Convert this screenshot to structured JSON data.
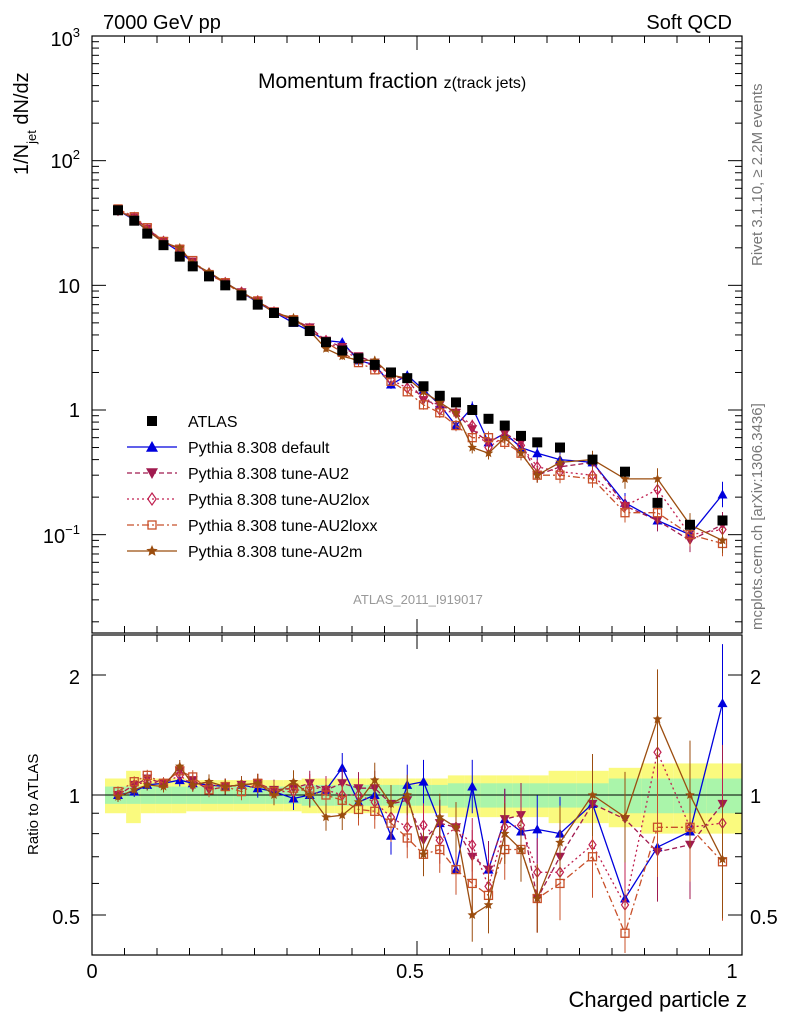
{
  "header": {
    "left": "7000 GeV pp",
    "right": "Soft QCD"
  },
  "side_labels": {
    "rivet": "Rivet 3.1.10, ≥ 2.2M events",
    "mcplots": "mcplots.cern.ch [arXiv:1306.3436]"
  },
  "chart_data": [
    {
      "type": "scatter",
      "title_main": "Momentum fraction ",
      "title_sub": "z(track jets)",
      "ylabel": "1/N_jet dN/dz",
      "yscale": "log",
      "ylim": [
        0.02,
        1000
      ],
      "xlim": [
        0,
        1
      ],
      "watermark": "ATLAS_2011_I919017",
      "ytick_labels": [
        "10^-1",
        "1",
        "10",
        "10^2",
        "10^3"
      ],
      "x": [
        0.04,
        0.065,
        0.085,
        0.11,
        0.135,
        0.155,
        0.18,
        0.205,
        0.23,
        0.255,
        0.28,
        0.31,
        0.335,
        0.36,
        0.385,
        0.41,
        0.435,
        0.46,
        0.485,
        0.51,
        0.535,
        0.56,
        0.585,
        0.61,
        0.635,
        0.66,
        0.685,
        0.72,
        0.77,
        0.82,
        0.87,
        0.92,
        0.97
      ],
      "series": [
        {
          "name": "ATLAS",
          "marker": "square",
          "color": "#000000",
          "dash": "none",
          "values": [
            40,
            33,
            26,
            21,
            17,
            14.2,
            11.8,
            10,
            8.3,
            7,
            6,
            5.1,
            4.3,
            3.5,
            3.0,
            2.6,
            2.3,
            2.0,
            1.8,
            1.55,
            1.3,
            1.15,
            1.0,
            0.85,
            0.75,
            0.62,
            0.55,
            0.5,
            0.4,
            0.32,
            0.18,
            0.12,
            0.13
          ]
        },
        {
          "name": "Pythia 8.308 default",
          "marker": "triangle-up",
          "color": "#0000dd",
          "dash": "none",
          "values": [
            40,
            33.5,
            27.5,
            22.5,
            18.5,
            15.2,
            12.5,
            10.5,
            8.8,
            7.3,
            6.1,
            5.0,
            4.3,
            3.6,
            3.5,
            2.5,
            2.3,
            1.6,
            1.9,
            1.45,
            1.1,
            0.75,
            1.05,
            0.55,
            0.65,
            0.5,
            0.45,
            0.4,
            0.38,
            0.18,
            0.13,
            0.1,
            0.21
          ]
        },
        {
          "name": "Pythia 8.308 tune-AU2",
          "marker": "triangle-down",
          "color": "#a01a4f",
          "dash": "5,3",
          "values": [
            40,
            35,
            28.5,
            22.5,
            19.5,
            15.5,
            12.2,
            10.5,
            8.8,
            7.5,
            6.2,
            5.3,
            4.6,
            3.6,
            3.2,
            2.7,
            2.4,
            1.9,
            1.75,
            1.2,
            1.1,
            0.95,
            0.7,
            0.55,
            0.65,
            0.55,
            0.3,
            0.35,
            0.38,
            0.17,
            0.13,
            0.09,
            0.12
          ]
        },
        {
          "name": "Pythia 8.308 tune-AU2lox",
          "marker": "diamond-open",
          "color": "#c02050",
          "dash": "2,3",
          "values": [
            40,
            35,
            28,
            22.5,
            19,
            15,
            12.5,
            10.5,
            8.8,
            7.5,
            6.1,
            5.2,
            4.5,
            3.6,
            3.0,
            2.6,
            2.2,
            1.75,
            1.5,
            1.3,
            1.0,
            0.95,
            0.75,
            0.5,
            0.62,
            0.52,
            0.35,
            0.32,
            0.3,
            0.17,
            0.23,
            0.1,
            0.11
          ]
        },
        {
          "name": "Pythia 8.308 tune-AU2loxx",
          "marker": "square-open",
          "color": "#c8502a",
          "dash": "7,3,2,3",
          "values": [
            41,
            35.5,
            29,
            22.5,
            19.5,
            15.8,
            12.2,
            10.5,
            8.5,
            7.5,
            6.1,
            5.3,
            4.4,
            3.5,
            2.9,
            2.4,
            2.1,
            1.7,
            1.4,
            1.1,
            0.95,
            0.75,
            0.6,
            0.6,
            0.55,
            0.45,
            0.3,
            0.3,
            0.28,
            0.15,
            0.15,
            0.1,
            0.085
          ]
        },
        {
          "name": "Pythia 8.308 tune-AU2m",
          "marker": "star",
          "color": "#9b4d0f",
          "dash": "none",
          "values": [
            40,
            34,
            27.5,
            22,
            20,
            15,
            12.8,
            10.5,
            8.8,
            7.5,
            6,
            5.5,
            4.3,
            3.1,
            2.7,
            2.5,
            2.5,
            1.9,
            1.8,
            1.4,
            1.15,
            0.95,
            0.5,
            0.45,
            0.6,
            0.45,
            0.3,
            0.38,
            0.4,
            0.28,
            0.28,
            0.12,
            0.09
          ]
        }
      ]
    },
    {
      "type": "scatter",
      "ylabel": "Ratio to ATLAS",
      "xlabel": "Charged particle z",
      "yscale": "log",
      "ylim": [
        0.42,
        2.3
      ],
      "xlim": [
        0,
        1
      ],
      "xtick_labels": [
        "0",
        "0.5",
        "1"
      ],
      "ytick_labels": [
        "0.5",
        "1",
        "2"
      ],
      "band_colors": {
        "inner": "#aaf5aa",
        "outer": "#fafa7e"
      },
      "band_inner_halfwidth": [
        0.05,
        0.05,
        0.05,
        0.05,
        0.05,
        0.05,
        0.05,
        0.05,
        0.05,
        0.05,
        0.05,
        0.05,
        0.06,
        0.06,
        0.06,
        0.06,
        0.06,
        0.06,
        0.06,
        0.06,
        0.06,
        0.07,
        0.07,
        0.07,
        0.07,
        0.07,
        0.07,
        0.07,
        0.07,
        0.1,
        0.1,
        0.1,
        0.1
      ],
      "band_outer_halfwidth": [
        0.1,
        0.15,
        0.1,
        0.1,
        0.1,
        0.09,
        0.09,
        0.09,
        0.09,
        0.09,
        0.09,
        0.09,
        0.1,
        0.1,
        0.1,
        0.1,
        0.1,
        0.1,
        0.1,
        0.1,
        0.1,
        0.12,
        0.12,
        0.12,
        0.12,
        0.12,
        0.12,
        0.15,
        0.15,
        0.17,
        0.2,
        0.2,
        0.2
      ],
      "series": [
        {
          "name": "Pythia 8.308 default",
          "values": [
            1.0,
            1.02,
            1.06,
            1.07,
            1.09,
            1.07,
            1.06,
            1.05,
            1.06,
            1.04,
            1.02,
            0.98,
            1.0,
            1.03,
            1.17,
            0.96,
            1.0,
            0.79,
            1.06,
            1.08,
            0.85,
            0.65,
            1.05,
            0.65,
            0.87,
            0.81,
            0.82,
            0.8,
            0.95,
            0.55,
            0.74,
            0.81,
            1.7
          ]
        },
        {
          "name": "Pythia 8.308 tune-AU2",
          "values": [
            1.0,
            1.06,
            1.1,
            1.07,
            1.15,
            1.09,
            1.03,
            1.05,
            1.06,
            1.07,
            1.03,
            1.04,
            1.07,
            1.03,
            1.07,
            1.04,
            1.04,
            0.95,
            0.97,
            0.77,
            0.85,
            0.83,
            0.7,
            0.65,
            0.87,
            0.89,
            0.55,
            0.7,
            0.95,
            0.87,
            0.72,
            0.75,
            0.95
          ]
        },
        {
          "name": "Pythia 8.308 tune-AU2lox",
          "values": [
            1.0,
            1.06,
            1.08,
            1.07,
            1.12,
            1.06,
            1.06,
            1.05,
            1.06,
            1.07,
            1.02,
            1.02,
            1.05,
            1.03,
            1.0,
            1.0,
            0.96,
            0.88,
            0.83,
            0.84,
            0.77,
            0.83,
            0.75,
            0.59,
            0.83,
            0.84,
            0.64,
            0.64,
            0.75,
            0.53,
            1.28,
            0.83,
            0.85
          ]
        },
        {
          "name": "Pythia 8.308 tune-AU2loxx",
          "values": [
            1.02,
            1.08,
            1.12,
            1.07,
            1.15,
            1.11,
            1.03,
            1.05,
            1.02,
            1.07,
            1.02,
            1.04,
            1.02,
            1.0,
            0.97,
            0.92,
            0.91,
            0.85,
            0.78,
            0.71,
            0.73,
            0.65,
            0.6,
            0.56,
            0.73,
            0.73,
            0.55,
            0.6,
            0.7,
            0.45,
            0.83,
            0.83,
            0.68
          ]
        },
        {
          "name": "Pythia 8.308 tune-AU2m",
          "values": [
            0.99,
            1.03,
            1.06,
            1.05,
            1.18,
            1.06,
            1.08,
            1.05,
            1.06,
            1.07,
            1.0,
            1.08,
            1.0,
            0.88,
            0.89,
            0.96,
            1.09,
            0.95,
            1.0,
            0.71,
            0.88,
            0.83,
            0.5,
            0.53,
            0.8,
            0.73,
            0.55,
            0.76,
            1.0,
            0.88,
            1.55,
            1.0,
            0.69
          ]
        }
      ]
    }
  ]
}
